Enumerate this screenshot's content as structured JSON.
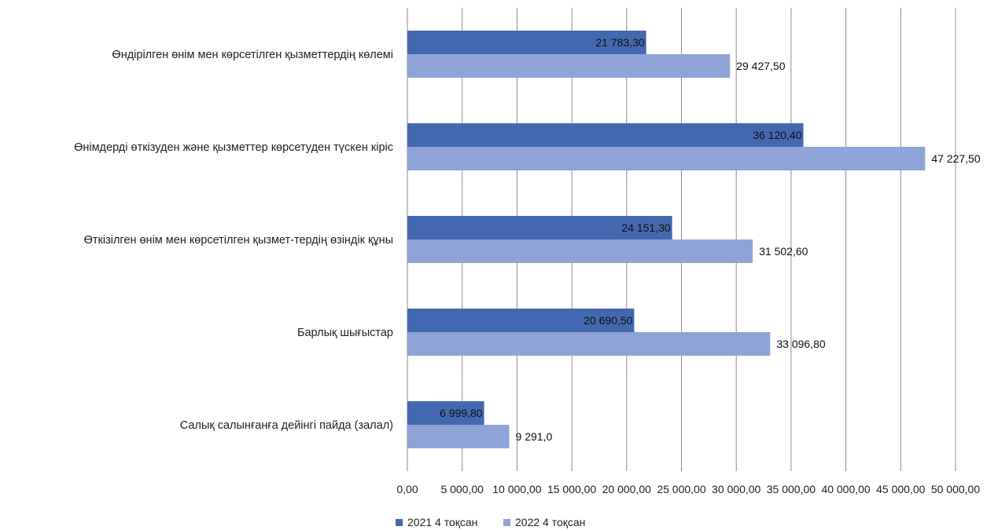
{
  "chart_data": {
    "type": "bar",
    "orientation": "horizontal",
    "categories": [
      "Өндірілген өнім мен көрсетілген қызметтердің көлемі",
      "Өнімдерді  өткізуден және қызметтер көрсетуден түскен кіріс",
      "Өткізілген өнім мен көрсетілген қызмет-тердің өзіндік құны",
      "Барлық шығыстар",
      "Салық салынғанға дейінгі пайда (залал)"
    ],
    "series": [
      {
        "name": "2021 4 тоқсан",
        "values": [
          21783.3,
          36120.4,
          24151.3,
          20690.5,
          6999.8
        ],
        "labels": [
          "21 783,30",
          "36 120,40",
          "24 151,30",
          "20 690,50",
          "6 999,80"
        ],
        "color": "#4468b0"
      },
      {
        "name": "2022 4 тоқсан",
        "values": [
          29427.5,
          47227.5,
          31502.6,
          33096.8,
          9291.0
        ],
        "labels": [
          "29 427,50",
          "47 227,50",
          "31 502,60",
          "33 096,80",
          "9 291,0"
        ],
        "color": "#8fa3d6"
      }
    ],
    "xlim": [
      0,
      50000
    ],
    "ticks": [
      0,
      5000,
      10000,
      15000,
      20000,
      25000,
      30000,
      35000,
      40000,
      45000,
      50000
    ],
    "tick_labels": [
      "0,00",
      "5 000,00",
      "10 000,00",
      "15 000,00",
      "20 000,00",
      "25 000,00",
      "30 000,00",
      "35 000,00",
      "40 000,00",
      "45 000,00",
      "50 000,00"
    ],
    "grid": true,
    "legend_position": "bottom-left",
    "grid_color": "#8c8c8c"
  }
}
